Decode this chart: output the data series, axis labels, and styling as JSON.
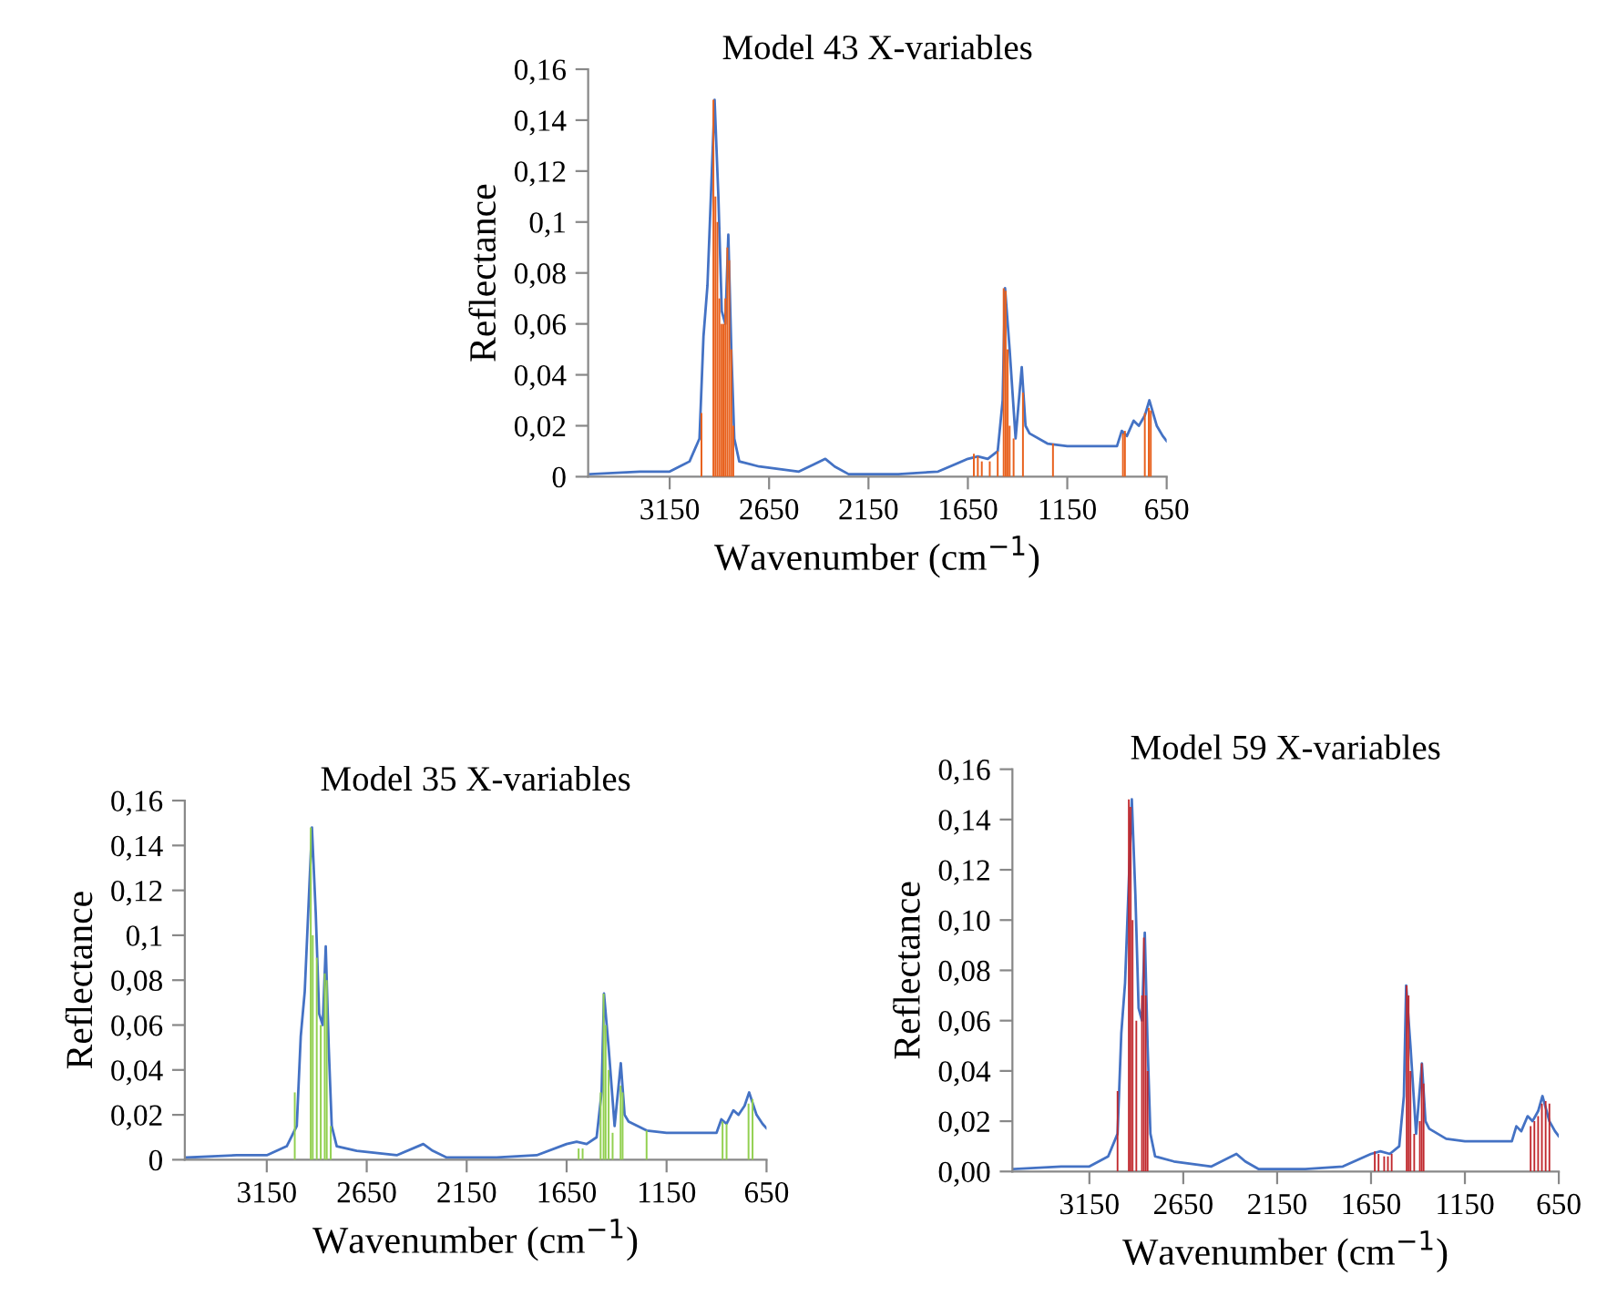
{
  "chart_data": [
    {
      "type": "bar",
      "title": "Model 43 X-variables",
      "xlabel": "Wavenumber (cm$^{−1}$)",
      "ylabel": "Reflectance",
      "xlim": [
        3560,
        650
      ],
      "xticks": [
        3150,
        2650,
        2150,
        1650,
        1150,
        650
      ],
      "ylim": [
        0,
        0.16
      ],
      "yticks": [
        {
          "value": 0,
          "label": "0"
        },
        {
          "value": 0.02,
          "label": "0,02"
        },
        {
          "value": 0.04,
          "label": "0,04"
        },
        {
          "value": 0.06,
          "label": "0,06"
        },
        {
          "value": 0.08,
          "label": "0,08"
        },
        {
          "value": 0.1,
          "label": "0,1"
        },
        {
          "value": 0.12,
          "label": "0,12"
        },
        {
          "value": 0.14,
          "label": "0,14"
        },
        {
          "value": 0.16,
          "label": "0,16"
        }
      ],
      "grid": false,
      "series": [
        {
          "type": "line",
          "color": "#4472c4",
          "x": [
            3550,
            3300,
            3150,
            3050,
            3000,
            2980,
            2960,
            2924,
            2905,
            2888,
            2870,
            2855,
            2840,
            2825,
            2800,
            2700,
            2500,
            2367,
            2320,
            2250,
            2000,
            1800,
            1650,
            1600,
            1550,
            1500,
            1475,
            1463,
            1440,
            1410,
            1379,
            1360,
            1340,
            1250,
            1150,
            1000,
            900,
            876,
            850,
            816,
            790,
            760,
            737,
            700,
            670,
            650
          ],
          "values": [
            0.001,
            0.002,
            0.002,
            0.006,
            0.015,
            0.055,
            0.075,
            0.148,
            0.11,
            0.065,
            0.06,
            0.095,
            0.05,
            0.015,
            0.006,
            0.004,
            0.002,
            0.007,
            0.004,
            0.001,
            0.001,
            0.002,
            0.007,
            0.008,
            0.007,
            0.01,
            0.03,
            0.074,
            0.05,
            0.015,
            0.043,
            0.02,
            0.017,
            0.013,
            0.012,
            0.012,
            0.012,
            0.018,
            0.016,
            0.022,
            0.02,
            0.024,
            0.03,
            0.02,
            0.016,
            0.014
          ]
        },
        {
          "color": "#e8601c",
          "x": [
            2990,
            2930,
            2920,
            2910,
            2900,
            2890,
            2880,
            2870,
            2860,
            2850,
            2840,
            2830,
            1620,
            1600,
            1580,
            1540,
            1500,
            1470,
            1460,
            1450,
            1440,
            1420,
            1373,
            1222,
            870,
            860,
            760,
            740,
            730
          ],
          "values": [
            0.025,
            0.148,
            0.11,
            0.1,
            0.07,
            0.06,
            0.06,
            0.07,
            0.09,
            0.085,
            0.05,
            0.02,
            0.009,
            0.008,
            0.006,
            0.006,
            0.01,
            0.074,
            0.073,
            0.05,
            0.02,
            0.015,
            0.033,
            0.013,
            0.017,
            0.018,
            0.025,
            0.027,
            0.026
          ]
        }
      ]
    },
    {
      "type": "bar",
      "title": "Model 35 X-variables",
      "xlabel": "Wavenumber (cm$^{−1}$)",
      "ylabel": "Reflectance",
      "xlim": [
        3560,
        650
      ],
      "xticks": [
        3150,
        2650,
        2150,
        1650,
        1150,
        650
      ],
      "ylim": [
        0,
        0.16
      ],
      "yticks": [
        {
          "value": 0,
          "label": "0"
        },
        {
          "value": 0.02,
          "label": "0,02"
        },
        {
          "value": 0.04,
          "label": "0,04"
        },
        {
          "value": 0.06,
          "label": "0,06"
        },
        {
          "value": 0.08,
          "label": "0,08"
        },
        {
          "value": 0.1,
          "label": "0,1"
        },
        {
          "value": 0.12,
          "label": "0,12"
        },
        {
          "value": 0.14,
          "label": "0,14"
        },
        {
          "value": 0.16,
          "label": "0,16"
        }
      ],
      "grid": false,
      "series": [
        {
          "type": "line",
          "color": "#4472c4",
          "x": [
            3550,
            3300,
            3150,
            3050,
            3000,
            2980,
            2960,
            2924,
            2905,
            2888,
            2870,
            2855,
            2840,
            2825,
            2800,
            2700,
            2500,
            2367,
            2320,
            2250,
            2000,
            1800,
            1650,
            1600,
            1550,
            1500,
            1475,
            1463,
            1440,
            1410,
            1379,
            1360,
            1340,
            1250,
            1150,
            1000,
            900,
            876,
            850,
            816,
            790,
            760,
            737,
            700,
            670,
            650
          ],
          "values": [
            0.001,
            0.002,
            0.002,
            0.006,
            0.015,
            0.055,
            0.075,
            0.148,
            0.11,
            0.065,
            0.06,
            0.095,
            0.05,
            0.015,
            0.006,
            0.004,
            0.002,
            0.007,
            0.004,
            0.001,
            0.001,
            0.002,
            0.007,
            0.008,
            0.007,
            0.01,
            0.03,
            0.074,
            0.05,
            0.015,
            0.043,
            0.02,
            0.017,
            0.013,
            0.012,
            0.012,
            0.012,
            0.018,
            0.016,
            0.022,
            0.02,
            0.024,
            0.03,
            0.02,
            0.016,
            0.014
          ]
        },
        {
          "color": "#92d050",
          "x": [
            3010,
            2930,
            2920,
            2900,
            2880,
            2860,
            2850,
            2830,
            1590,
            1570,
            1480,
            1465,
            1455,
            1440,
            1420,
            1380,
            1370,
            1250,
            870,
            850,
            740,
            720
          ],
          "values": [
            0.03,
            0.148,
            0.1,
            0.09,
            0.06,
            0.083,
            0.08,
            0.015,
            0.005,
            0.005,
            0.03,
            0.074,
            0.06,
            0.04,
            0.012,
            0.033,
            0.03,
            0.013,
            0.017,
            0.016,
            0.025,
            0.027
          ]
        }
      ]
    },
    {
      "type": "bar",
      "title": "Model 59 X-variables",
      "xlabel": "Wavenumber (cm$^{−1}$)",
      "ylabel": "Reflectance",
      "xlim": [
        3560,
        650
      ],
      "xticks": [
        3150,
        2650,
        2150,
        1650,
        1150,
        650
      ],
      "ylim": [
        0,
        0.16
      ],
      "yticks": [
        {
          "value": 0,
          "label": "0,00"
        },
        {
          "value": 0.02,
          "label": "0,02"
        },
        {
          "value": 0.04,
          "label": "0,04"
        },
        {
          "value": 0.06,
          "label": "0,06"
        },
        {
          "value": 0.08,
          "label": "0,08"
        },
        {
          "value": 0.1,
          "label": "0,10"
        },
        {
          "value": 0.12,
          "label": "0,12"
        },
        {
          "value": 0.14,
          "label": "0,14"
        },
        {
          "value": 0.16,
          "label": "0,16"
        }
      ],
      "grid": false,
      "series": [
        {
          "type": "line",
          "color": "#4472c4",
          "x": [
            3550,
            3300,
            3150,
            3050,
            3000,
            2980,
            2960,
            2924,
            2905,
            2888,
            2870,
            2855,
            2840,
            2825,
            2800,
            2700,
            2500,
            2367,
            2320,
            2250,
            2000,
            1800,
            1650,
            1600,
            1550,
            1500,
            1475,
            1463,
            1440,
            1410,
            1379,
            1360,
            1340,
            1250,
            1150,
            1000,
            900,
            876,
            850,
            816,
            790,
            760,
            737,
            700,
            670,
            650
          ],
          "values": [
            0.001,
            0.002,
            0.002,
            0.006,
            0.015,
            0.055,
            0.075,
            0.148,
            0.11,
            0.065,
            0.06,
            0.095,
            0.05,
            0.015,
            0.006,
            0.004,
            0.002,
            0.007,
            0.004,
            0.001,
            0.001,
            0.002,
            0.007,
            0.008,
            0.007,
            0.01,
            0.03,
            0.074,
            0.05,
            0.015,
            0.043,
            0.02,
            0.017,
            0.013,
            0.012,
            0.012,
            0.012,
            0.018,
            0.016,
            0.022,
            0.02,
            0.024,
            0.03,
            0.02,
            0.016,
            0.014
          ]
        },
        {
          "color": "#c0282d",
          "x": [
            3000,
            2940,
            2930,
            2920,
            2900,
            2870,
            2860,
            2850,
            2840,
            1630,
            1610,
            1580,
            1560,
            1540,
            1460,
            1450,
            1440,
            1420,
            1390,
            1380,
            1370,
            800,
            780,
            760,
            740,
            720,
            700
          ],
          "values": [
            0.032,
            0.148,
            0.145,
            0.1,
            0.06,
            0.07,
            0.093,
            0.07,
            0.04,
            0.008,
            0.007,
            0.006,
            0.006,
            0.007,
            0.074,
            0.07,
            0.04,
            0.015,
            0.02,
            0.043,
            0.035,
            0.018,
            0.02,
            0.022,
            0.027,
            0.028,
            0.027
          ]
        }
      ]
    }
  ]
}
